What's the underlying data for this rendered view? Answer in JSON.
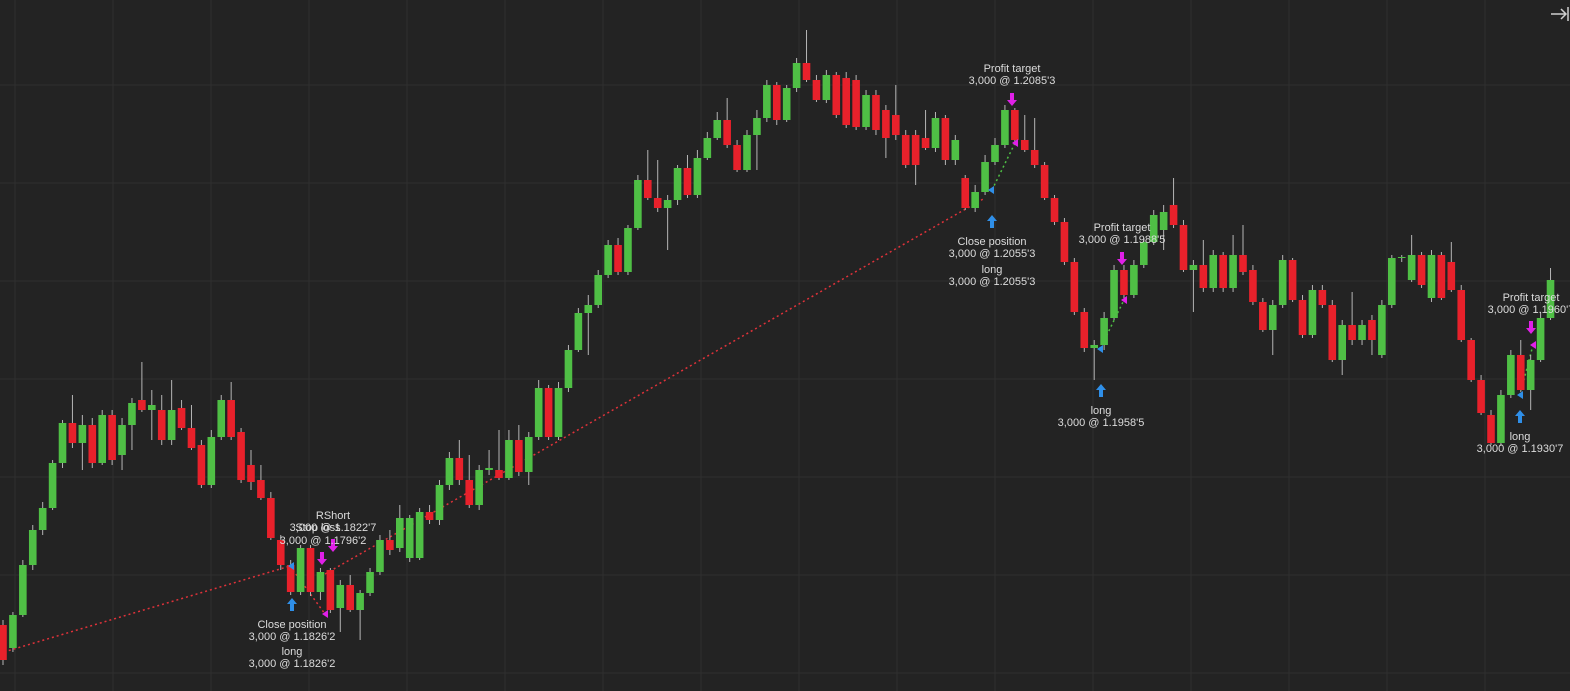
{
  "chart_data": {
    "type": "candlestick",
    "open": [
      1.1795,
      1.17812,
      1.1801,
      1.1831,
      1.1852,
      1.18652,
      1.18922,
      1.19162,
      1.19042,
      1.1915,
      1.18922,
      1.1921,
      1.1897,
      1.1915,
      1.193,
      1.1924,
      1.1924,
      1.1906,
      1.19252,
      1.19132,
      1.1903,
      1.1879,
      1.19078,
      1.193,
      1.19108,
      1.1891,
      1.1882,
      1.18712,
      1.1846,
      1.1831,
      1.18148,
      1.18412,
      1.18148,
      1.1828,
      1.18052,
      1.1819,
      1.1804,
      1.18142,
      1.18268,
      1.1846,
      1.18412,
      1.18352,
      1.18352,
      1.18628,
      1.1858,
      1.1879,
      1.18952,
      1.1882,
      1.1867,
      1.1888,
      1.1888,
      1.18832,
      1.1906,
      1.18868,
      1.19078,
      1.19372,
      1.19078,
      1.19372,
      1.196,
      1.19822,
      1.1987,
      1.2005,
      1.2023,
      1.20068,
      1.20332,
      1.2062,
      1.20512,
      1.20452,
      1.205,
      1.20692,
      1.2053,
      1.20752,
      1.20872,
      1.2098,
      1.2083,
      1.2068,
      1.2089,
      1.20992,
      1.2119,
      1.2098,
      1.21172,
      1.21322,
      1.2122,
      1.211,
      1.2125,
      1.21232,
      1.2122,
      1.20938,
      1.2113,
      1.2104,
      1.2101,
      1.2089,
      1.2089,
      1.20872,
      1.20812,
      1.20992,
      1.2074,
      1.20632,
      1.20452,
      1.20548,
      1.20728,
      1.2083,
      1.2104,
      1.2086,
      1.208,
      1.2071,
      1.20512,
      1.20368,
      1.20128,
      1.19828,
      1.19612,
      1.1963,
      1.19792,
      1.2008,
      1.1993,
      1.2011,
      1.20248,
      1.2032,
      1.2047,
      1.2035,
      1.2008,
      1.2011,
      1.19972,
      1.2017,
      1.19972,
      1.2017,
      1.2008,
      1.19888,
      1.1972,
      1.1987,
      1.2014,
      1.199,
      1.1969,
      1.1996,
      1.1987,
      1.1954,
      1.1975,
      1.1966,
      1.1978,
      1.1957,
      1.1987,
      1.20152,
      1.2002,
      1.2017,
      1.19912,
      1.2017,
      1.20128,
      1.1996,
      1.1966,
      1.1942,
      1.1921,
      1.19042,
      1.1933,
      1.1957,
      1.1936,
      1.1954,
      1.19792
    ],
    "high": [
      1.1798,
      1.18028,
      1.1834,
      1.1855,
      1.18688,
      1.1894,
      1.1918,
      1.1933,
      1.1921,
      1.19192,
      1.1924,
      1.1924,
      1.19192,
      1.19312,
      1.19528,
      1.1936,
      1.1933,
      1.1942,
      1.193,
      1.1927,
      1.1906,
      1.1912,
      1.1933,
      1.19408,
      1.19132,
      1.19,
      1.1891,
      1.18748,
      1.1849,
      1.1834,
      1.1843,
      1.1843,
      1.18292,
      1.18292,
      1.1822,
      1.1825,
      1.1816,
      1.18292,
      1.1849,
      1.1852,
      1.1867,
      1.1861,
      1.18652,
      1.1867,
      1.1882,
      1.18988,
      1.1906,
      1.1897,
      1.1891,
      1.19,
      1.1912,
      1.1912,
      1.1915,
      1.19108,
      1.1942,
      1.1939,
      1.19408,
      1.1963,
      1.19852,
      1.1993,
      1.2008,
      1.2026,
      1.20272,
      1.2035,
      1.2065,
      1.208,
      1.2074,
      1.2053,
      1.2071,
      1.2077,
      1.208,
      1.20908,
      1.21028,
      1.21112,
      1.2086,
      1.2092,
      1.2104,
      1.2122,
      1.21208,
      1.2119,
      1.21352,
      1.2152,
      1.2125,
      1.2128,
      1.21268,
      1.21268,
      1.2125,
      1.2116,
      1.2116,
      1.2107,
      1.2119,
      1.2092,
      1.2092,
      1.2104,
      1.21028,
      1.2101,
      1.2089,
      1.2065,
      1.2059,
      1.2077,
      1.20872,
      1.2107,
      1.21052,
      1.2101,
      1.20992,
      1.20728,
      1.2053,
      1.20392,
      1.20152,
      1.19852,
      1.1966,
      1.19828,
      1.2011,
      1.2011,
      1.2014,
      1.20272,
      1.2044,
      1.2047,
      1.20632,
      1.2038,
      1.2014,
      1.2026,
      1.202,
      1.20188,
      1.2029,
      1.2035,
      1.2011,
      1.19912,
      1.199,
      1.2017,
      1.20152,
      1.1993,
      1.1999,
      1.1999,
      1.199,
      1.1978,
      1.19948,
      1.1978,
      1.1981,
      1.199,
      1.2017,
      1.2017,
      1.2029,
      1.20188,
      1.202,
      1.20188,
      1.20248,
      1.1999,
      1.19672,
      1.1945,
      1.1924,
      1.1936,
      1.196,
      1.1966,
      1.1957,
      1.19828,
      1.20092
    ],
    "low": [
      1.1771,
      1.17788,
      1.17998,
      1.1828,
      1.1849,
      1.1864,
      1.18892,
      1.19012,
      1.1888,
      1.18892,
      1.1891,
      1.1891,
      1.1888,
      1.19,
      1.19228,
      1.1906,
      1.1903,
      1.1903,
      1.1912,
      1.19,
      1.18772,
      1.18772,
      1.1906,
      1.1906,
      1.18802,
      1.1876,
      1.187,
      1.1846,
      1.1828,
      1.1813,
      1.1813,
      1.18124,
      1.181,
      1.18022,
      1.17908,
      1.18028,
      1.1786,
      1.18124,
      1.1825,
      1.1837,
      1.18388,
      1.18328,
      1.1834,
      1.18556,
      1.1855,
      1.1876,
      1.1879,
      1.18652,
      1.1864,
      1.1885,
      1.1882,
      1.1882,
      1.18844,
      1.1879,
      1.1906,
      1.1906,
      1.1906,
      1.19348,
      1.19588,
      1.1957,
      1.19852,
      1.20032,
      1.2005,
      1.2005,
      1.2032,
      1.205,
      1.20428,
      1.202,
      1.2047,
      1.20512,
      1.20512,
      1.2074,
      1.2086,
      1.20812,
      1.20668,
      1.20668,
      1.2068,
      1.20968,
      1.2095,
      1.20968,
      1.21148,
      1.21208,
      1.21088,
      1.21082,
      1.20992,
      1.20932,
      1.2092,
      1.2092,
      1.2089,
      1.20752,
      1.2086,
      1.20692,
      1.2059,
      1.208,
      1.20788,
      1.2071,
      1.2071,
      1.2044,
      1.20428,
      1.2053,
      1.2071,
      1.20812,
      1.20842,
      1.20788,
      1.20692,
      1.205,
      1.2035,
      1.2011,
      1.1981,
      1.19588,
      1.1942,
      1.196,
      1.1978,
      1.19912,
      1.19912,
      1.20092,
      1.2023,
      1.202,
      1.20332,
      1.20068,
      1.19828,
      1.19948,
      1.19948,
      1.19948,
      1.19948,
      1.2005,
      1.1987,
      1.19708,
      1.1957,
      1.19852,
      1.19888,
      1.19672,
      1.19672,
      1.19852,
      1.19528,
      1.1945,
      1.1963,
      1.1963,
      1.1957,
      1.19552,
      1.19852,
      1.20128,
      1.20008,
      1.19972,
      1.19888,
      1.199,
      1.19948,
      1.19648,
      1.19408,
      1.1921,
      1.1903,
      1.19024,
      1.19312,
      1.19348,
      1.1924,
      1.19528,
      1.1978
    ],
    "close": [
      1.1774,
      1.1801,
      1.1831,
      1.1852,
      1.18652,
      1.18922,
      1.19162,
      1.19042,
      1.1915,
      1.18922,
      1.1921,
      1.1894,
      1.1915,
      1.19282,
      1.1924,
      1.1927,
      1.1906,
      1.1924,
      1.19132,
      1.19012,
      1.1879,
      1.19078,
      1.193,
      1.19078,
      1.1882,
      1.18808,
      1.18712,
      1.18472,
      1.1831,
      1.18148,
      1.18412,
      1.18148,
      1.18268,
      1.1804,
      1.1819,
      1.1804,
      1.18142,
      1.18268,
      1.1846,
      1.184,
      1.18592,
      1.18592,
      1.18628,
      1.1858,
      1.1879,
      1.18952,
      1.1882,
      1.1867,
      1.1888,
      1.18892,
      1.18832,
      1.1906,
      1.18868,
      1.19078,
      1.19372,
      1.19078,
      1.19372,
      1.196,
      1.19822,
      1.1987,
      1.2005,
      1.2023,
      1.20068,
      1.20332,
      1.2062,
      1.20512,
      1.20452,
      1.205,
      1.20692,
      1.2053,
      1.20752,
      1.20872,
      1.2098,
      1.2083,
      1.2068,
      1.2089,
      1.20992,
      1.2119,
      1.2098,
      1.21172,
      1.21322,
      1.2122,
      1.211,
      1.2125,
      1.2101,
      1.2095,
      1.20938,
      1.2113,
      1.2092,
      1.20872,
      1.2089,
      1.2071,
      1.2071,
      1.20812,
      1.20992,
      1.2074,
      1.2086,
      1.20452,
      1.20548,
      1.20728,
      1.2083,
      1.2104,
      1.2086,
      1.208,
      1.2071,
      1.20512,
      1.20368,
      1.20128,
      1.19828,
      1.19612,
      1.1963,
      1.19792,
      1.2008,
      1.1993,
      1.2011,
      1.20248,
      1.2041,
      1.20428,
      1.2035,
      1.2008,
      1.2011,
      1.19972,
      1.2017,
      1.19972,
      1.2017,
      1.20068,
      1.19888,
      1.1972,
      1.1987,
      1.2014,
      1.199,
      1.1969,
      1.1996,
      1.1987,
      1.1954,
      1.1975,
      1.1966,
      1.1975,
      1.1966,
      1.1987,
      1.20152,
      1.20158,
      1.2017,
      1.1999,
      1.2017,
      1.19912,
      1.1996,
      1.1966,
      1.1942,
      1.19222,
      1.19042,
      1.1933,
      1.1957,
      1.1936,
      1.1954,
      1.19792,
      1.2002
    ],
    "ylim": [
      1.17554,
      1.217
    ],
    "up_color": "#4fbf45",
    "down_color": "#e8212b",
    "annotations": [
      "Close position",
      "3,000 @ 1.1826'2",
      "long",
      "3,000 @ 1.1826'2",
      "RShort",
      "3,000 @ 1.1822'7",
      "Stop loss",
      "3,000 @ 1.1796'2",
      "Profit target",
      "3,000 @ 1.2085'3",
      "Close position",
      "3,000 @ 1.2055'3",
      "long",
      "3,000 @ 1.2055'3",
      "Profit target",
      "3,000 @ 1.1988'5",
      "long",
      "3,000 @ 1.1958'5",
      "Profit target",
      "3,000 @ 1.1960'7",
      "long",
      "3,000 @ 1.1930'7"
    ]
  }
}
